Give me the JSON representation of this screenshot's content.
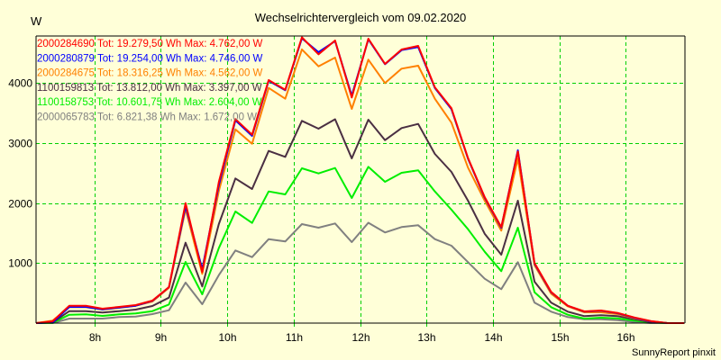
{
  "chart_data": {
    "type": "line",
    "title": "Wechselrichtervergleich vom 09.02.2020",
    "ylabel": "W",
    "xlabel": "",
    "footer": "SunnyReport pinxit",
    "xlim": [
      7.125,
      16.875
    ],
    "ylim": [
      0,
      4800
    ],
    "grid": true,
    "legend_position": "top-left",
    "x_ticks": [
      {
        "value": 8,
        "label": "8h"
      },
      {
        "value": 9,
        "label": "9h"
      },
      {
        "value": 10,
        "label": "10h"
      },
      {
        "value": 11,
        "label": "11h"
      },
      {
        "value": 12,
        "label": "12h"
      },
      {
        "value": 13,
        "label": "13h"
      },
      {
        "value": 14,
        "label": "14h"
      },
      {
        "value": 15,
        "label": "15h"
      },
      {
        "value": 16,
        "label": "16h"
      }
    ],
    "y_ticks": [
      {
        "value": 1000,
        "label": "1000"
      },
      {
        "value": 2000,
        "label": "2000"
      },
      {
        "value": 3000,
        "label": "3000"
      },
      {
        "value": 4000,
        "label": "4000"
      }
    ],
    "x": [
      7.125,
      7.375,
      7.625,
      7.875,
      8.125,
      8.375,
      8.625,
      8.875,
      9.125,
      9.375,
      9.625,
      9.875,
      10.125,
      10.375,
      10.625,
      10.875,
      11.125,
      11.375,
      11.625,
      11.875,
      12.125,
      12.375,
      12.625,
      12.875,
      13.125,
      13.375,
      13.625,
      13.875,
      14.125,
      14.375,
      14.625,
      14.875,
      15.125,
      15.375,
      15.625,
      15.875,
      16.125,
      16.375,
      16.625,
      16.875
    ],
    "series": [
      {
        "name": "2000284690",
        "legend": "2000284690 Tot: 19.279,50 Wh Max: 4.762,00 W",
        "color": "#ff0000",
        "values": [
          0,
          30,
          290,
          290,
          240,
          270,
          300,
          375,
          600,
          2000,
          850,
          2350,
          3400,
          3140,
          4050,
          3890,
          4762,
          4480,
          4710,
          3760,
          4740,
          4320,
          4560,
          4620,
          3930,
          3580,
          2750,
          2100,
          1600,
          2860,
          1000,
          520,
          290,
          195,
          210,
          170,
          95,
          35,
          0,
          0
        ]
      },
      {
        "name": "2000280879",
        "legend": "2000280879 Tot: 19.254,00 Wh Max: 4.746,00 W",
        "color": "#0000ff",
        "values": [
          0,
          10,
          270,
          270,
          230,
          260,
          290,
          370,
          600,
          1950,
          900,
          2300,
          3380,
          3120,
          4040,
          3880,
          4746,
          4515,
          4700,
          3790,
          4730,
          4315,
          4550,
          4600,
          3920,
          3565,
          2740,
          2090,
          1590,
          2880,
          990,
          515,
          290,
          190,
          205,
          165,
          90,
          30,
          0,
          0
        ]
      },
      {
        "name": "2000284675",
        "legend": "2000284675 Tot: 18.316,25 Wh Max: 4.562,00 W",
        "color": "#ff8000",
        "values": [
          0,
          40,
          265,
          265,
          225,
          255,
          290,
          360,
          590,
          1900,
          820,
          2200,
          3230,
          2990,
          3920,
          3740,
          4562,
          4280,
          4425,
          3570,
          4390,
          4000,
          4240,
          4290,
          3740,
          3340,
          2590,
          2040,
          1540,
          2740,
          965,
          490,
          280,
          180,
          180,
          150,
          80,
          30,
          0,
          0
        ]
      },
      {
        "name": "1100159813",
        "legend": "1100159813 Tot: 13.812,00 Wh Max: 3.397,00 W",
        "color": "#4a2f42",
        "values": [
          0,
          10,
          200,
          200,
          175,
          200,
          225,
          285,
          425,
          1340,
          610,
          1650,
          2410,
          2235,
          2870,
          2770,
          3370,
          3240,
          3397,
          2745,
          3390,
          3050,
          3250,
          3320,
          2820,
          2520,
          2040,
          1490,
          1140,
          2040,
          690,
          340,
          190,
          115,
          130,
          115,
          65,
          15,
          0,
          0
        ]
      },
      {
        "name": "1100158753",
        "legend": "1100158753 Tot: 10.601,75 Wh Max: 2.604,00 W",
        "color": "#00ee00",
        "values": [
          0,
          5,
          140,
          145,
          120,
          145,
          160,
          200,
          310,
          1020,
          480,
          1250,
          1860,
          1670,
          2195,
          2145,
          2580,
          2495,
          2585,
          2085,
          2604,
          2355,
          2505,
          2545,
          2195,
          1890,
          1565,
          1190,
          865,
          1590,
          515,
          265,
          140,
          75,
          90,
          80,
          40,
          10,
          0,
          0
        ]
      },
      {
        "name": "2000065783",
        "legend": "2000065783 Tot: 6.821,38 Wh Max: 1.672,00 W",
        "color": "#808080",
        "values": [
          0,
          0,
          75,
          75,
          75,
          100,
          110,
          150,
          215,
          675,
          315,
          800,
          1210,
          1100,
          1400,
          1360,
          1650,
          1590,
          1660,
          1350,
          1672,
          1510,
          1600,
          1630,
          1400,
          1290,
          1015,
          740,
          565,
          1015,
          340,
          190,
          100,
          65,
          65,
          50,
          20,
          0,
          0,
          0
        ]
      }
    ]
  }
}
